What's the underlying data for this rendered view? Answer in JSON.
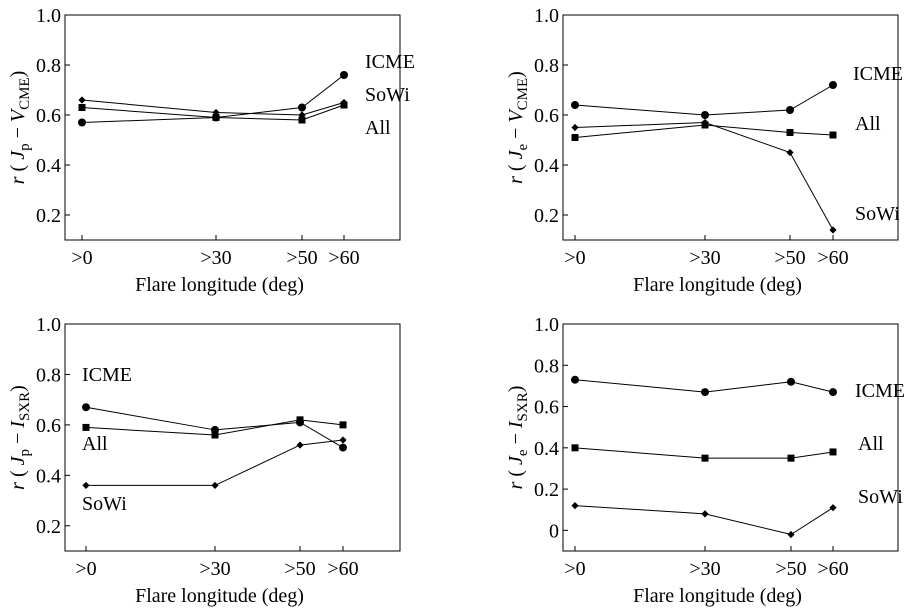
{
  "chart_data": [
    {
      "type": "line",
      "x": [
        ">0",
        ">30",
        ">50",
        ">60"
      ],
      "x_values": [
        0,
        30,
        50,
        60
      ],
      "xlabel": "Flare longitude  (deg)",
      "ylabel": {
        "r": "r",
        "open": "( ",
        "j": "J",
        "jsub": "p",
        "minus": " − ",
        "v": "V",
        "vsub": "CME",
        "close": ")"
      },
      "ylim": [
        0.1,
        1.0
      ],
      "yticks": [
        "0.2",
        "0.4",
        "0.6",
        "0.8",
        "1.0"
      ],
      "series": [
        {
          "name": "ICME",
          "marker": "circle",
          "values": [
            0.57,
            0.59,
            0.63,
            0.76
          ]
        },
        {
          "name": "SoWi",
          "marker": "diamond",
          "values": [
            0.66,
            0.61,
            0.6,
            0.65
          ]
        },
        {
          "name": "All",
          "marker": "square",
          "values": [
            0.63,
            0.59,
            0.58,
            0.64
          ]
        }
      ]
    },
    {
      "type": "line",
      "x": [
        ">0",
        ">30",
        ">50",
        ">60"
      ],
      "x_values": [
        0,
        30,
        50,
        60
      ],
      "xlabel": "Flare longitude  (deg)",
      "ylabel": {
        "r": "r",
        "open": "( ",
        "j": "J",
        "jsub": "e",
        "minus": " − ",
        "v": "V",
        "vsub": "CME",
        "close": ")"
      },
      "ylim": [
        0.1,
        1.0
      ],
      "yticks": [
        "0.2",
        "0.4",
        "0.6",
        "0.8",
        "1.0"
      ],
      "series": [
        {
          "name": "ICME",
          "marker": "circle",
          "values": [
            0.64,
            0.6,
            0.62,
            0.72
          ]
        },
        {
          "name": "All",
          "marker": "square",
          "values": [
            0.51,
            0.56,
            0.53,
            0.52
          ]
        },
        {
          "name": "SoWi",
          "marker": "diamond",
          "values": [
            0.55,
            0.57,
            0.45,
            0.14
          ]
        }
      ]
    },
    {
      "type": "line",
      "x": [
        ">0",
        ">30",
        ">50",
        ">60"
      ],
      "x_values": [
        0,
        30,
        50,
        60
      ],
      "xlabel": "Flare longitude  (deg)",
      "ylabel": {
        "r": "r",
        "open": "( ",
        "j": "J",
        "jsub": "p",
        "minus": " − ",
        "v": "I",
        "vsub": "SXR",
        "close": ")"
      },
      "ylim": [
        0.1,
        1.0
      ],
      "yticks": [
        "0.2",
        "0.4",
        "0.6",
        "0.8",
        "1.0"
      ],
      "series": [
        {
          "name": "ICME",
          "marker": "circle",
          "values": [
            0.67,
            0.58,
            0.61,
            0.51
          ]
        },
        {
          "name": "All",
          "marker": "square",
          "values": [
            0.59,
            0.56,
            0.62,
            0.6
          ]
        },
        {
          "name": "SoWi",
          "marker": "diamond",
          "values": [
            0.36,
            0.36,
            0.52,
            0.54
          ]
        }
      ]
    },
    {
      "type": "line",
      "x": [
        ">0",
        ">30",
        ">50",
        ">60"
      ],
      "x_values": [
        0,
        30,
        50,
        60
      ],
      "xlabel": "Flare longitude  (deg)",
      "ylabel": {
        "r": "r",
        "open": "( ",
        "j": "J",
        "jsub": "e",
        "minus": " − ",
        "v": "I",
        "vsub": "SXR",
        "close": ")"
      },
      "ylim": [
        -0.1,
        1.0
      ],
      "yticks": [
        "0",
        "0.2",
        "0.4",
        "0.6",
        "0.8",
        "1.0"
      ],
      "series": [
        {
          "name": "ICME",
          "marker": "circle",
          "values": [
            0.73,
            0.67,
            0.72,
            0.67
          ]
        },
        {
          "name": "All",
          "marker": "square",
          "values": [
            0.4,
            0.35,
            0.35,
            0.38
          ]
        },
        {
          "name": "SoWi",
          "marker": "diamond",
          "values": [
            0.12,
            0.08,
            -0.02,
            0.11
          ]
        }
      ]
    }
  ]
}
